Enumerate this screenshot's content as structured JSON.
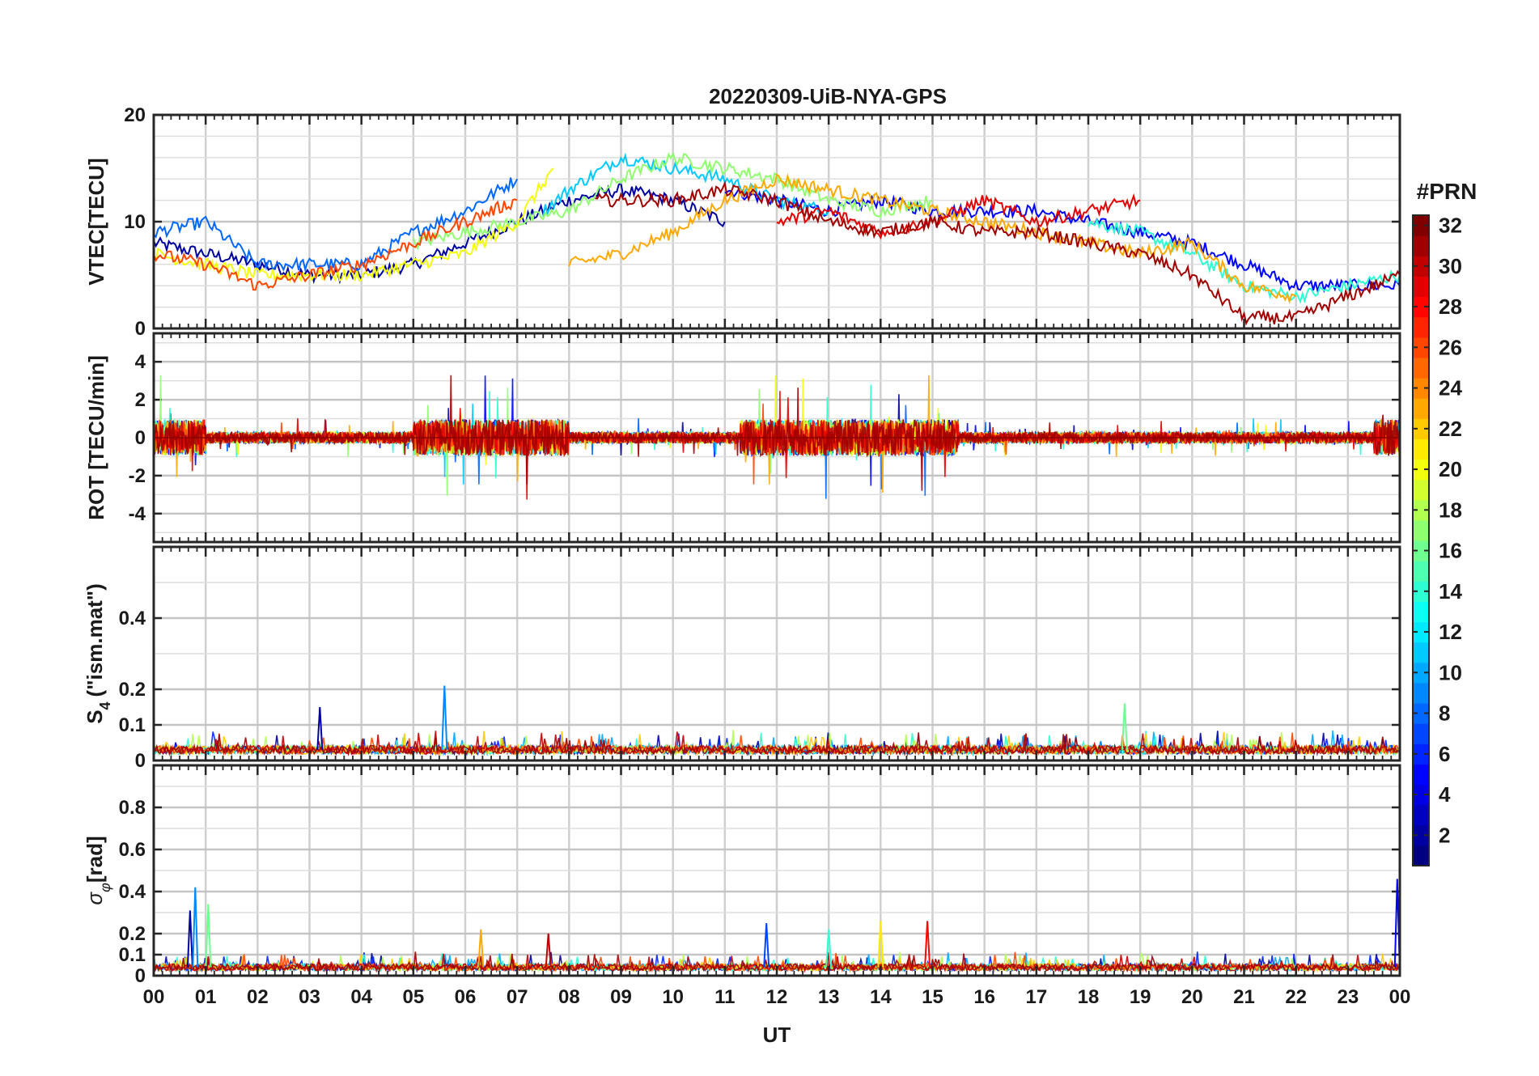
{
  "chart_data": {
    "type": "line",
    "title": "20220309-UiB-NYA-GPS",
    "xlabel": "UT",
    "x_tick_labels": [
      "00",
      "01",
      "02",
      "03",
      "04",
      "05",
      "06",
      "07",
      "08",
      "09",
      "10",
      "11",
      "12",
      "13",
      "14",
      "15",
      "16",
      "17",
      "18",
      "19",
      "20",
      "21",
      "22",
      "23",
      "00"
    ],
    "x_range_hours": [
      0,
      24
    ],
    "grid": true,
    "colorbar": {
      "title": "#PRN",
      "range": [
        1,
        32
      ],
      "tick_values": [
        2,
        4,
        6,
        8,
        10,
        12,
        14,
        16,
        18,
        20,
        22,
        24,
        26,
        28,
        30,
        32
      ],
      "tick_labels": [
        "2",
        "4",
        "6",
        "8",
        "10",
        "12",
        "14",
        "16",
        "18",
        "20",
        "22",
        "24",
        "26",
        "28",
        "30",
        "32"
      ],
      "colormap": "jet",
      "placement": "right"
    },
    "panels": [
      {
        "id": "vtec",
        "ylabel": "VTEC[TECU]",
        "ylim": [
          0,
          20
        ],
        "y_tick_values": [
          0,
          10,
          20
        ],
        "y_tick_labels": [
          "0",
          "10",
          "20"
        ],
        "series_summary": [
          {
            "prn": 2,
            "x_hours": [
              0,
              1,
              2,
              3,
              4,
              5,
              6,
              7,
              8,
              9,
              10,
              11
            ],
            "y": [
              8,
              7,
              6,
              5,
              5,
              6,
              8,
              10,
              12,
              13,
              12,
              10
            ]
          },
          {
            "prn": 5,
            "x_hours": [
              11,
              12,
              13,
              14,
              15,
              16,
              17,
              18,
              19,
              20,
              21,
              22,
              23,
              24
            ],
            "y": [
              13,
              12,
              11,
              12,
              11,
              11,
              11,
              10,
              9,
              8,
              6,
              4,
              4,
              4
            ]
          },
          {
            "prn": 8,
            "x_hours": [
              0,
              1,
              2,
              3,
              4,
              5,
              6,
              7
            ],
            "y": [
              9,
              10,
              6,
              6,
              6,
              9,
              11,
              14
            ]
          },
          {
            "prn": 11,
            "x_hours": [
              7.5,
              8,
              9,
              10,
              11,
              12,
              13
            ],
            "y": [
              11,
              13,
              16,
              15,
              14,
              12,
              11
            ]
          },
          {
            "prn": 14,
            "x_hours": [
              18,
              19,
              20,
              21,
              22,
              23,
              24
            ],
            "y": [
              10,
              9,
              7,
              4,
              3,
              4,
              5
            ]
          },
          {
            "prn": 17,
            "x_hours": [
              5,
              6,
              7,
              8,
              9,
              10,
              11,
              12,
              13,
              14,
              15
            ],
            "y": [
              8,
              9,
              10,
              11,
              14,
              16,
              15,
              14,
              12,
              11,
              12
            ]
          },
          {
            "prn": 20,
            "x_hours": [
              0,
              1,
              2,
              3,
              4,
              5,
              6,
              7,
              7.7
            ],
            "y": [
              7,
              6,
              5,
              5,
              5,
              6,
              7,
              10,
              15
            ]
          },
          {
            "prn": 23,
            "x_hours": [
              8,
              9,
              10,
              11,
              12,
              13,
              14,
              15,
              16,
              17,
              18,
              19,
              20,
              21,
              22
            ],
            "y": [
              6,
              7,
              9,
              12,
              14,
              13,
              12,
              11,
              10,
              9,
              8,
              7,
              8,
              4,
              3
            ]
          },
          {
            "prn": 26,
            "x_hours": [
              0,
              1,
              2,
              3,
              4,
              5,
              6,
              7
            ],
            "y": [
              7,
              6,
              4,
              5,
              6,
              8,
              10,
              12
            ]
          },
          {
            "prn": 29,
            "x_hours": [
              12,
              13,
              14,
              15,
              16,
              17,
              18,
              19
            ],
            "y": [
              10,
              11,
              9,
              10,
              12,
              10,
              11,
              12
            ]
          },
          {
            "prn": 31,
            "x_hours": [
              8.5,
              9,
              10,
              11,
              12,
              13,
              14,
              15,
              16,
              17,
              18,
              19,
              20,
              21,
              22,
              23,
              24
            ],
            "y": [
              12,
              12,
              12,
              13,
              12,
              10,
              9,
              10,
              9,
              9,
              8,
              7,
              5,
              1,
              1,
              3,
              5
            ]
          }
        ]
      },
      {
        "id": "rot",
        "ylabel": "ROT [TECU/min]",
        "ylim": [
          -5.5,
          5.5
        ],
        "y_tick_values": [
          -4,
          -2,
          0,
          2,
          4
        ],
        "y_tick_labels": [
          "-4",
          "-2",
          "0",
          "2",
          "4"
        ],
        "series_summary": {
          "baseline": 0,
          "typical_amplitude": 0.6,
          "high_activity_intervals_hours": [
            [
              0,
              1
            ],
            [
              5,
              8
            ],
            [
              11.3,
              15.5
            ],
            [
              23.5,
              24
            ]
          ],
          "high_activity_amplitude": 3.5,
          "min": -3.9,
          "max": 3.7
        }
      },
      {
        "id": "s4",
        "ylabel": "S4 (\"ism.mat\")",
        "ylim": [
          0,
          0.6
        ],
        "y_tick_values": [
          0,
          0.1,
          0.2,
          0.4
        ],
        "y_tick_labels": [
          "0",
          "0.1",
          "0.2",
          "0.4"
        ],
        "series_summary": {
          "typical_level": 0.03,
          "typical_max": 0.12,
          "peaks": [
            {
              "x_hours": 3.2,
              "y": 0.15
            },
            {
              "x_hours": 5.6,
              "y": 0.21
            },
            {
              "x_hours": 18.7,
              "y": 0.16
            }
          ]
        }
      },
      {
        "id": "sigma_phi",
        "ylabel": "σφ[rad]",
        "ylim": [
          0,
          1
        ],
        "y_tick_values": [
          0,
          0.1,
          0.2,
          0.4,
          0.6,
          0.8
        ],
        "y_tick_labels": [
          "0",
          "0.1",
          "0.2",
          "0.4",
          "0.6",
          "0.8"
        ],
        "series_summary": {
          "typical_level": 0.04,
          "peaks": [
            {
              "x_hours": 0.7,
              "y": 0.31
            },
            {
              "x_hours": 0.8,
              "y": 0.42
            },
            {
              "x_hours": 1.05,
              "y": 0.34
            },
            {
              "x_hours": 6.3,
              "y": 0.22
            },
            {
              "x_hours": 7.6,
              "y": 0.2
            },
            {
              "x_hours": 11.8,
              "y": 0.25
            },
            {
              "x_hours": 13.0,
              "y": 0.22
            },
            {
              "x_hours": 14.0,
              "y": 0.26
            },
            {
              "x_hours": 14.9,
              "y": 0.26
            },
            {
              "x_hours": 23.95,
              "y": 0.46
            }
          ]
        }
      }
    ]
  }
}
